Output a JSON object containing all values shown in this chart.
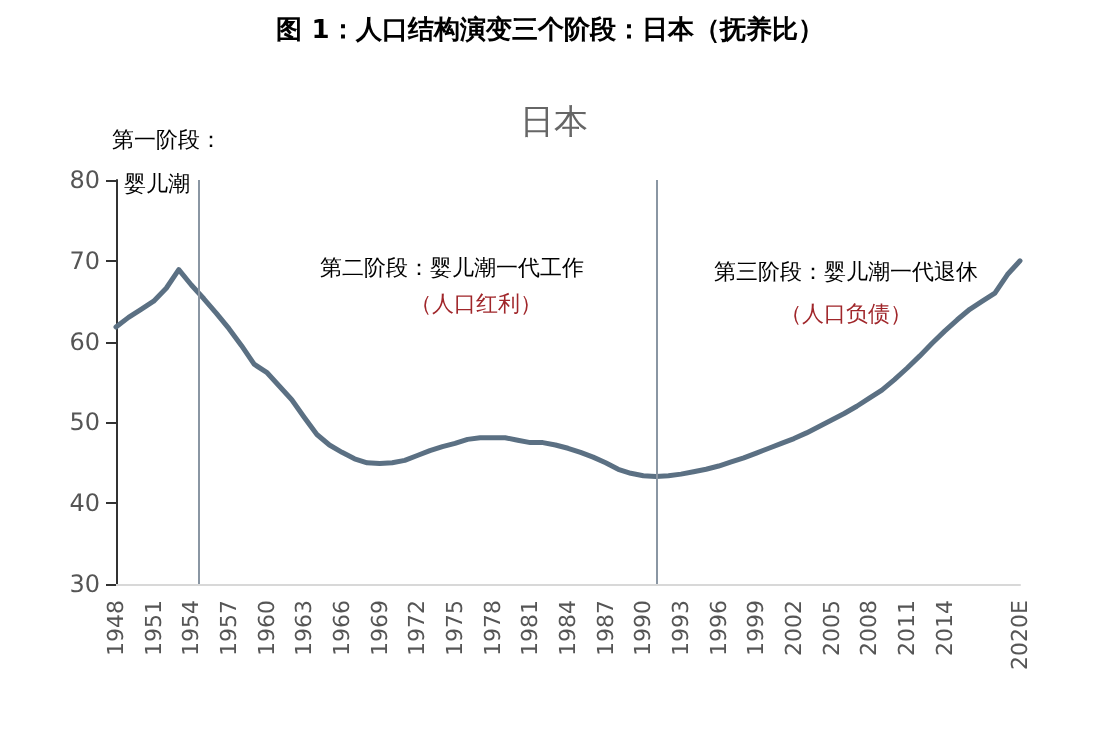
{
  "chart_data": {
    "type": "line",
    "title": "图 1：人口结构演变三个阶段：日本（抚养比）",
    "subtitle": "日本",
    "annotations": [
      "第一阶段：",
      "婴儿潮",
      "第二阶段：婴儿潮一代工作",
      "（人口红利）",
      "第三阶段：婴儿潮一代退休",
      "（人口负债）"
    ],
    "series": [
      {
        "color": "#5b7083",
        "x": [
          1948,
          1949,
          1950,
          1951,
          1952,
          1953,
          1954,
          1955,
          1956,
          1957,
          1958,
          1959,
          1960,
          1961,
          1962,
          1963,
          1964,
          1965,
          1966,
          1967,
          1968,
          1969,
          1970,
          1971,
          1972,
          1973,
          1974,
          1975,
          1976,
          1977,
          1978,
          1979,
          1980,
          1981,
          1982,
          1983,
          1984,
          1985,
          1986,
          1987,
          1988,
          1989,
          1990,
          1991,
          1992,
          1993,
          1994,
          1995,
          1996,
          1997,
          1998,
          1999,
          2000,
          2001,
          2002,
          2003,
          2004,
          2005,
          2006,
          2007,
          2008,
          2009,
          2010,
          2011,
          2012,
          2013,
          2014,
          2015,
          2016,
          2017,
          2018,
          2019,
          2020
        ],
        "values": [
          61.8,
          63,
          64,
          65,
          66.6,
          68.9,
          67,
          65.3,
          63.5,
          61.6,
          59.5,
          57.2,
          56.2,
          54.5,
          52.8,
          50.6,
          48.5,
          47.2,
          46.3,
          45.5,
          45,
          44.9,
          45,
          45.3,
          45.9,
          46.5,
          47,
          47.4,
          47.9,
          48.1,
          48.1,
          48.1,
          47.8,
          47.5,
          47.5,
          47.2,
          46.8,
          46.3,
          45.7,
          45,
          44.2,
          43.7,
          43.4,
          43.3,
          43.4,
          43.6,
          43.9,
          44.2,
          44.6,
          45.1,
          45.6,
          46.2,
          46.8,
          47.4,
          48,
          48.7,
          49.5,
          50.3,
          51.1,
          52,
          53,
          54,
          55.3,
          56.7,
          58.2,
          59.8,
          61.3,
          62.7,
          64,
          65,
          66,
          68.3,
          70
        ]
      }
    ],
    "xlim": [
      1948,
      2020
    ],
    "xticks": [
      1948,
      1951,
      1954,
      1957,
      1960,
      1963,
      1966,
      1969,
      1972,
      1975,
      1978,
      1981,
      1984,
      1987,
      1990,
      1993,
      1996,
      1999,
      2002,
      2005,
      2008,
      2011,
      2014,
      {
        "value": 2020,
        "label": "2020E"
      }
    ],
    "ylim": [
      30,
      80
    ],
    "yticks": [
      30,
      40,
      50,
      60,
      70,
      80
    ],
    "ref_lines": [
      {
        "axis": "x",
        "value": 1954.5,
        "color": "#8a96a3"
      },
      {
        "axis": "x",
        "value": 1991,
        "color": "#8a96a3"
      }
    ],
    "grid": false,
    "marker": "none",
    "line_style": "solid"
  }
}
